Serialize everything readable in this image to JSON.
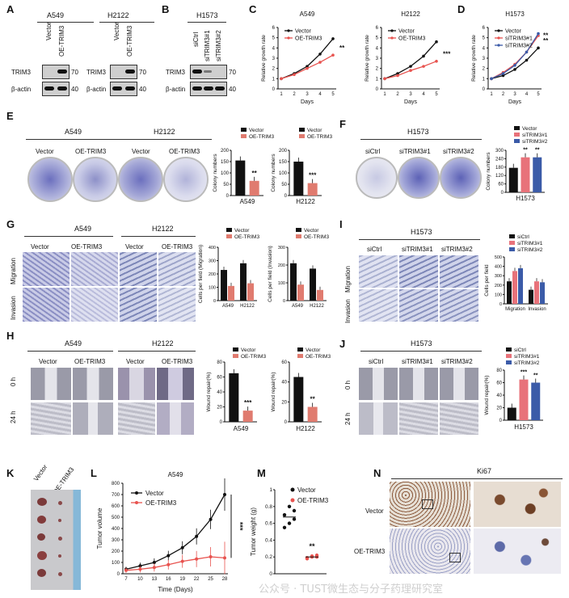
{
  "panels": {
    "A": {
      "label": "A",
      "groups": [
        "A549",
        "H2122"
      ],
      "lanes": [
        "Vector",
        "OE-TRIM3"
      ],
      "proteins": [
        "TRIM3",
        "β-actin"
      ],
      "markers": [
        "70",
        "40"
      ]
    },
    "B": {
      "label": "B",
      "group": "H1573",
      "lanes": [
        "siCtrl",
        "siTRIM3#1",
        "siTRIM3#2"
      ],
      "proteins": [
        "TRIM3",
        "β-actin"
      ],
      "markers": [
        "70",
        "40"
      ]
    },
    "C": {
      "label": "C",
      "charts": [
        {
          "title": "A549",
          "ylabel": "Relative growth rate",
          "xlabel": "Days",
          "legend": [
            "Vector",
            "OE-TRIM3"
          ],
          "sig": "**"
        },
        {
          "title": "H2122",
          "ylabel": "Relative growth rate",
          "xlabel": "Days",
          "legend": [
            "Vector",
            "OE-TRIM3"
          ],
          "sig": "***"
        }
      ]
    },
    "D": {
      "label": "D",
      "title": "H1573",
      "ylabel": "Relative growth rate",
      "xlabel": "Days",
      "legend": [
        "Vector",
        "siTRIM3#1",
        "siTRIM3#2"
      ],
      "sig": [
        "**",
        "**"
      ]
    },
    "E": {
      "label": "E",
      "groups": [
        "A549",
        "H2122"
      ],
      "dishes": [
        "Vector",
        "OE-TRIM3",
        "Vector",
        "OE-TRIM3"
      ],
      "ylabel": "Colony numbers",
      "legend": [
        "Vector",
        "OE-TRIM3"
      ],
      "sig": [
        "**",
        "***"
      ]
    },
    "F": {
      "label": "F",
      "group": "H1573",
      "dishes": [
        "siCtrl",
        "siTRIM3#1",
        "siTRIM3#2"
      ],
      "ylabel": "Colony numbers",
      "legend": [
        "Vector",
        "siTRIM3#1",
        "siTRIM3#2"
      ],
      "sig": [
        "**",
        "**"
      ],
      "chart_group": "H1573"
    },
    "G": {
      "label": "G",
      "groups": [
        "A549",
        "H2122"
      ],
      "cols": [
        "Vector",
        "OE-TRIM3",
        "Vector",
        "OE-TRIM3"
      ],
      "rows": [
        "Migration",
        "Invasion"
      ],
      "ylabel1": "Cells per field (Migration)",
      "ylabel2": "Cells per field (Invasion)",
      "legend": [
        "Vector",
        "OE-TRIM3"
      ],
      "xcats": [
        "A549",
        "H2122"
      ]
    },
    "I": {
      "label": "I",
      "group": "H1573",
      "cols": [
        "siCtrl",
        "siTRIM3#1",
        "siTRIM3#2"
      ],
      "rows": [
        "Migration",
        "Invasion"
      ],
      "ylabel": "Cells per field",
      "legend": [
        "siCtrl",
        "siTRIM3#1",
        "siTRIM3#2"
      ],
      "xcats": [
        "Migration",
        "Invasion"
      ]
    },
    "H": {
      "label": "H",
      "groups": [
        "A549",
        "H2122"
      ],
      "cols": [
        "Vector",
        "OE-TRIM3",
        "Vector",
        "OE-TRIM3"
      ],
      "rows": [
        "0 h",
        "24 h"
      ],
      "ylabel": "Wound repair(%)",
      "legend": [
        "Vector",
        "OE-TRIM3"
      ],
      "xcats": [
        "A549",
        "H2122"
      ],
      "sig": [
        "***",
        "**"
      ]
    },
    "J": {
      "label": "J",
      "group": "H1573",
      "cols": [
        "siCtrl",
        "siTRIM3#1",
        "siTRIM3#2"
      ],
      "rows": [
        "0 h",
        "24 h"
      ],
      "ylabel": "Wound repair(%)",
      "legend": [
        "siCtrl",
        "siTRIM3#1",
        "siTRIM3#2"
      ],
      "xcat": "H1573",
      "sig": [
        "***",
        "**"
      ]
    },
    "K": {
      "label": "K",
      "lanes": [
        "Vector",
        "OE-TRIM3"
      ]
    },
    "L": {
      "label": "L",
      "title": "A549",
      "ylabel": "Tumor volume",
      "xlabel": "Time (Days)",
      "legend": [
        "Vector",
        "OE-TRIM3"
      ],
      "sig": "***"
    },
    "M": {
      "label": "M",
      "ylabel": "Tumor weight (g)",
      "legend": [
        "Vector",
        "OE-TRIM3"
      ],
      "sig": "**"
    },
    "N": {
      "label": "N",
      "title": "Ki67",
      "rows": [
        "Vector",
        "OE-TRIM3"
      ]
    }
  },
  "watermark": "公众号 · TUST微生态与分子药理研究室",
  "colors": {
    "black": "#111111",
    "red": "#e8534f",
    "salmon": "#e07b6f",
    "blue": "#3b5ba8",
    "pink": "#e8727a"
  },
  "chart_data": [
    {
      "panel": "C-A549",
      "type": "line",
      "x": [
        1,
        2,
        3,
        4,
        5
      ],
      "xlabel": "Days",
      "ylabel": "Relative growth rate",
      "ylim": [
        0,
        6
      ],
      "series": [
        {
          "name": "Vector",
          "values": [
            1.0,
            1.5,
            2.2,
            3.4,
            4.9
          ]
        },
        {
          "name": "OE-TRIM3",
          "values": [
            1.0,
            1.4,
            2.0,
            2.6,
            3.3
          ]
        }
      ]
    },
    {
      "panel": "C-H2122",
      "type": "line",
      "x": [
        1,
        2,
        3,
        4,
        5
      ],
      "xlabel": "Days",
      "ylabel": "Relative growth rate",
      "ylim": [
        0,
        6
      ],
      "series": [
        {
          "name": "Vector",
          "values": [
            1.0,
            1.5,
            2.2,
            3.2,
            4.6
          ]
        },
        {
          "name": "OE-TRIM3",
          "values": [
            1.0,
            1.3,
            1.8,
            2.2,
            2.7
          ]
        }
      ]
    },
    {
      "panel": "D",
      "type": "line",
      "x": [
        1,
        2,
        3,
        4,
        5
      ],
      "xlabel": "Days",
      "ylabel": "Relative growth rate",
      "ylim": [
        0,
        6
      ],
      "series": [
        {
          "name": "Vector",
          "values": [
            1.0,
            1.3,
            1.9,
            2.8,
            4.0
          ]
        },
        {
          "name": "siTRIM3#1",
          "values": [
            1.0,
            1.6,
            2.4,
            3.6,
            5.2
          ]
        },
        {
          "name": "siTRIM3#2",
          "values": [
            1.0,
            1.5,
            2.3,
            3.6,
            5.4
          ]
        }
      ]
    },
    {
      "panel": "E-A549",
      "type": "bar",
      "categories": [
        "Vector",
        "OE-TRIM3"
      ],
      "values": [
        155,
        65
      ],
      "ylabel": "Colony numbers",
      "ylim": [
        0,
        200
      ]
    },
    {
      "panel": "E-H2122",
      "type": "bar",
      "categories": [
        "Vector",
        "OE-TRIM3"
      ],
      "values": [
        150,
        55
      ],
      "ylabel": "Colony numbers",
      "ylim": [
        0,
        200
      ]
    },
    {
      "panel": "F",
      "type": "bar",
      "categories": [
        "Vector",
        "siTRIM3#1",
        "siTRIM3#2"
      ],
      "values": [
        175,
        250,
        250
      ],
      "ylabel": "Colony numbers",
      "ylim": [
        0,
        300
      ],
      "yticks": [
        0,
        60,
        120,
        180,
        240,
        300
      ]
    },
    {
      "panel": "G-Migration",
      "type": "bar",
      "categories": [
        "A549",
        "H2122"
      ],
      "series": [
        {
          "name": "Vector",
          "values": [
            230,
            280
          ]
        },
        {
          "name": "OE-TRIM3",
          "values": [
            110,
            130
          ]
        }
      ],
      "ylabel": "Cells per field (Migration)",
      "ylim": [
        0,
        400
      ]
    },
    {
      "panel": "G-Invasion",
      "type": "bar",
      "categories": [
        "A549",
        "H2122"
      ],
      "series": [
        {
          "name": "Vector",
          "values": [
            210,
            180
          ]
        },
        {
          "name": "OE-TRIM3",
          "values": [
            90,
            60
          ]
        }
      ],
      "ylabel": "Cells per field (Invasion)",
      "ylim": [
        0,
        300
      ]
    },
    {
      "panel": "I",
      "type": "bar",
      "categories": [
        "Migration",
        "Invasion"
      ],
      "series": [
        {
          "name": "siCtrl",
          "values": [
            240,
            150
          ]
        },
        {
          "name": "siTRIM3#1",
          "values": [
            350,
            240
          ]
        },
        {
          "name": "siTRIM3#2",
          "values": [
            380,
            230
          ]
        }
      ],
      "ylabel": "Cells per field",
      "ylim": [
        0,
        500
      ]
    },
    {
      "panel": "H-A549",
      "type": "bar",
      "categories": [
        "Vector",
        "OE-TRIM3"
      ],
      "values": [
        65,
        15
      ],
      "ylabel": "Wound repair(%)",
      "ylim": [
        0,
        80
      ]
    },
    {
      "panel": "H-H2122",
      "type": "bar",
      "categories": [
        "Vector",
        "OE-TRIM3"
      ],
      "values": [
        45,
        15
      ],
      "ylabel": "Wound repair(%)",
      "ylim": [
        0,
        60
      ]
    },
    {
      "panel": "J",
      "type": "bar",
      "categories": [
        "siCtrl",
        "siTRIM3#1",
        "siTRIM3#2"
      ],
      "values": [
        20,
        65,
        60
      ],
      "ylabel": "Wound repair(%)",
      "ylim": [
        0,
        80
      ]
    },
    {
      "panel": "L",
      "type": "line",
      "x": [
        7,
        10,
        13,
        16,
        19,
        22,
        25,
        28
      ],
      "xlabel": "Time (Days)",
      "ylabel": "Tumor volume",
      "ylim": [
        0,
        800
      ],
      "yticks": [
        0,
        100,
        200,
        300,
        400,
        500,
        600,
        700,
        800
      ],
      "series": [
        {
          "name": "Vector",
          "values": [
            40,
            70,
            100,
            160,
            230,
            330,
            480,
            700
          ]
        },
        {
          "name": "OE-TRIM3",
          "values": [
            30,
            40,
            55,
            80,
            110,
            130,
            150,
            140
          ]
        }
      ]
    },
    {
      "panel": "M",
      "type": "scatter",
      "categories": [
        "Vector",
        "OE-TRIM3"
      ],
      "ylabel": "Tumor weight (g)",
      "ylim": [
        0,
        1.0
      ],
      "yticks": [
        0,
        0.2,
        0.4,
        0.6,
        0.8,
        1.0
      ],
      "series": [
        {
          "name": "Vector",
          "values": [
            0.55,
            0.6,
            0.65,
            0.7,
            0.8,
            0.75
          ]
        },
        {
          "name": "OE-TRIM3",
          "values": [
            0.18,
            0.2,
            0.22,
            0.19,
            0.21,
            0.2
          ]
        }
      ]
    }
  ]
}
